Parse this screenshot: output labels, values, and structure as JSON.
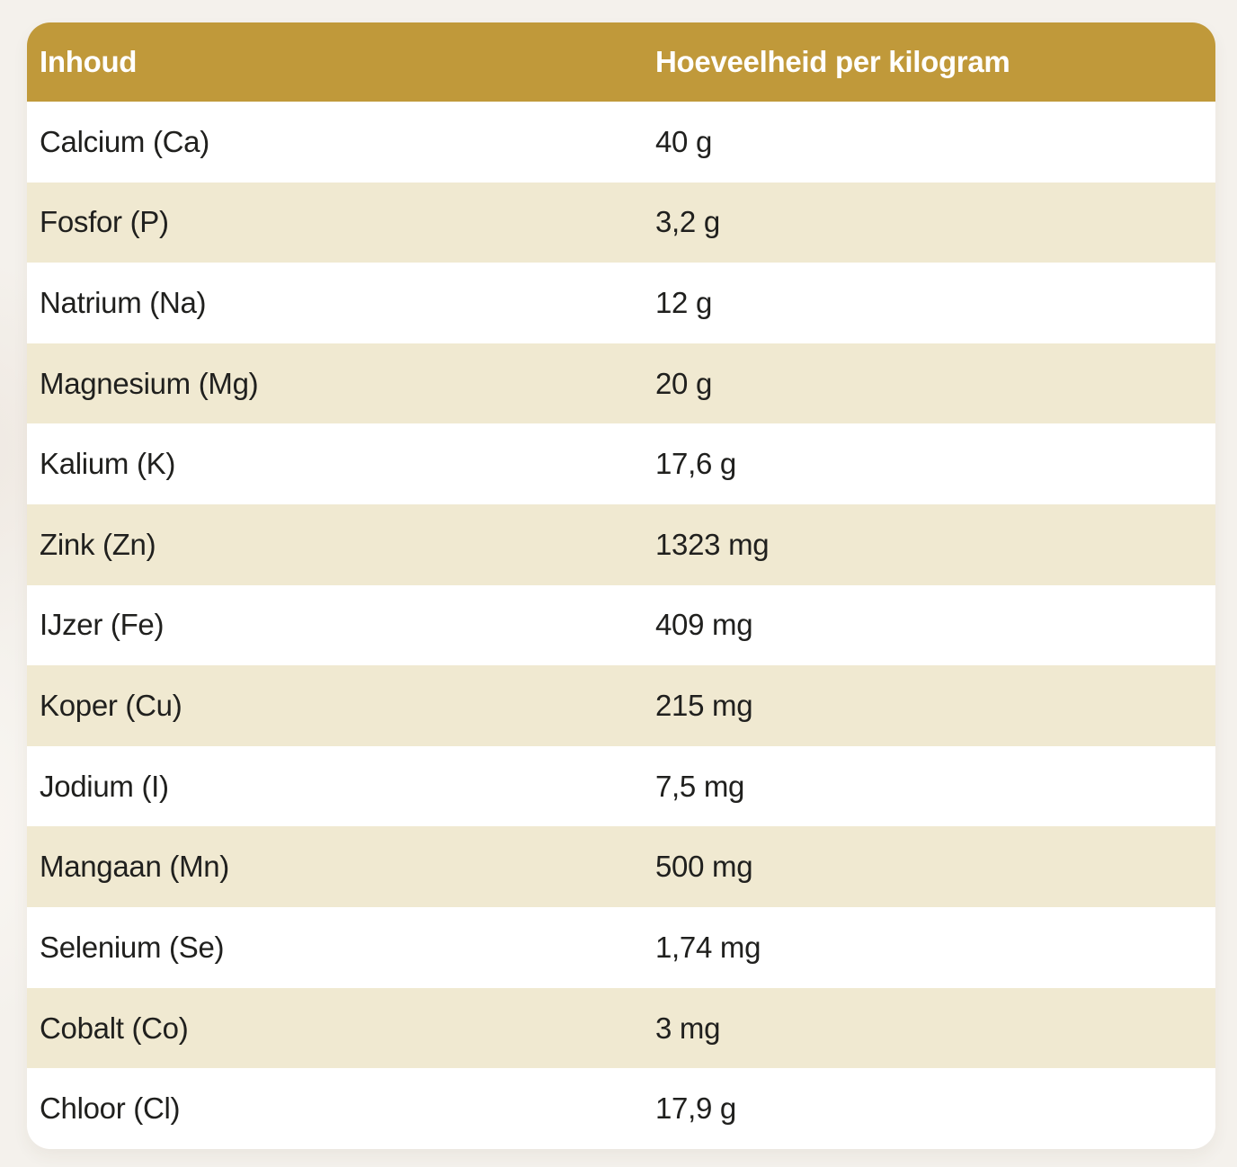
{
  "colors": {
    "header_bg": "#c0993a",
    "header_text": "#ffffff",
    "row_white": "#ffffff",
    "row_cream": "#f0e9d1",
    "body_text": "#20201e",
    "page_background": "#f4f1ec"
  },
  "table": {
    "header": {
      "col1": "Inhoud",
      "col2": "Hoeveelheid per kilogram"
    },
    "rows": [
      {
        "label": "Calcium (Ca)",
        "value": "40 g"
      },
      {
        "label": "Fosfor (P)",
        "value": "3,2 g"
      },
      {
        "label": "Natrium (Na)",
        "value": "12 g"
      },
      {
        "label": "Magnesium (Mg)",
        "value": "20 g"
      },
      {
        "label": "Kalium (K)",
        "value": "17,6 g"
      },
      {
        "label": "Zink (Zn)",
        "value": "1323 mg"
      },
      {
        "label": "IJzer (Fe)",
        "value": "409 mg"
      },
      {
        "label": "Koper (Cu)",
        "value": "215 mg"
      },
      {
        "label": "Jodium (I)",
        "value": "7,5 mg"
      },
      {
        "label": "Mangaan (Mn)",
        "value": "500 mg"
      },
      {
        "label": "Selenium (Se)",
        "value": "1,74 mg"
      },
      {
        "label": "Cobalt (Co)",
        "value": "3 mg"
      },
      {
        "label": "Chloor (Cl)",
        "value": "17,9 g"
      }
    ]
  }
}
